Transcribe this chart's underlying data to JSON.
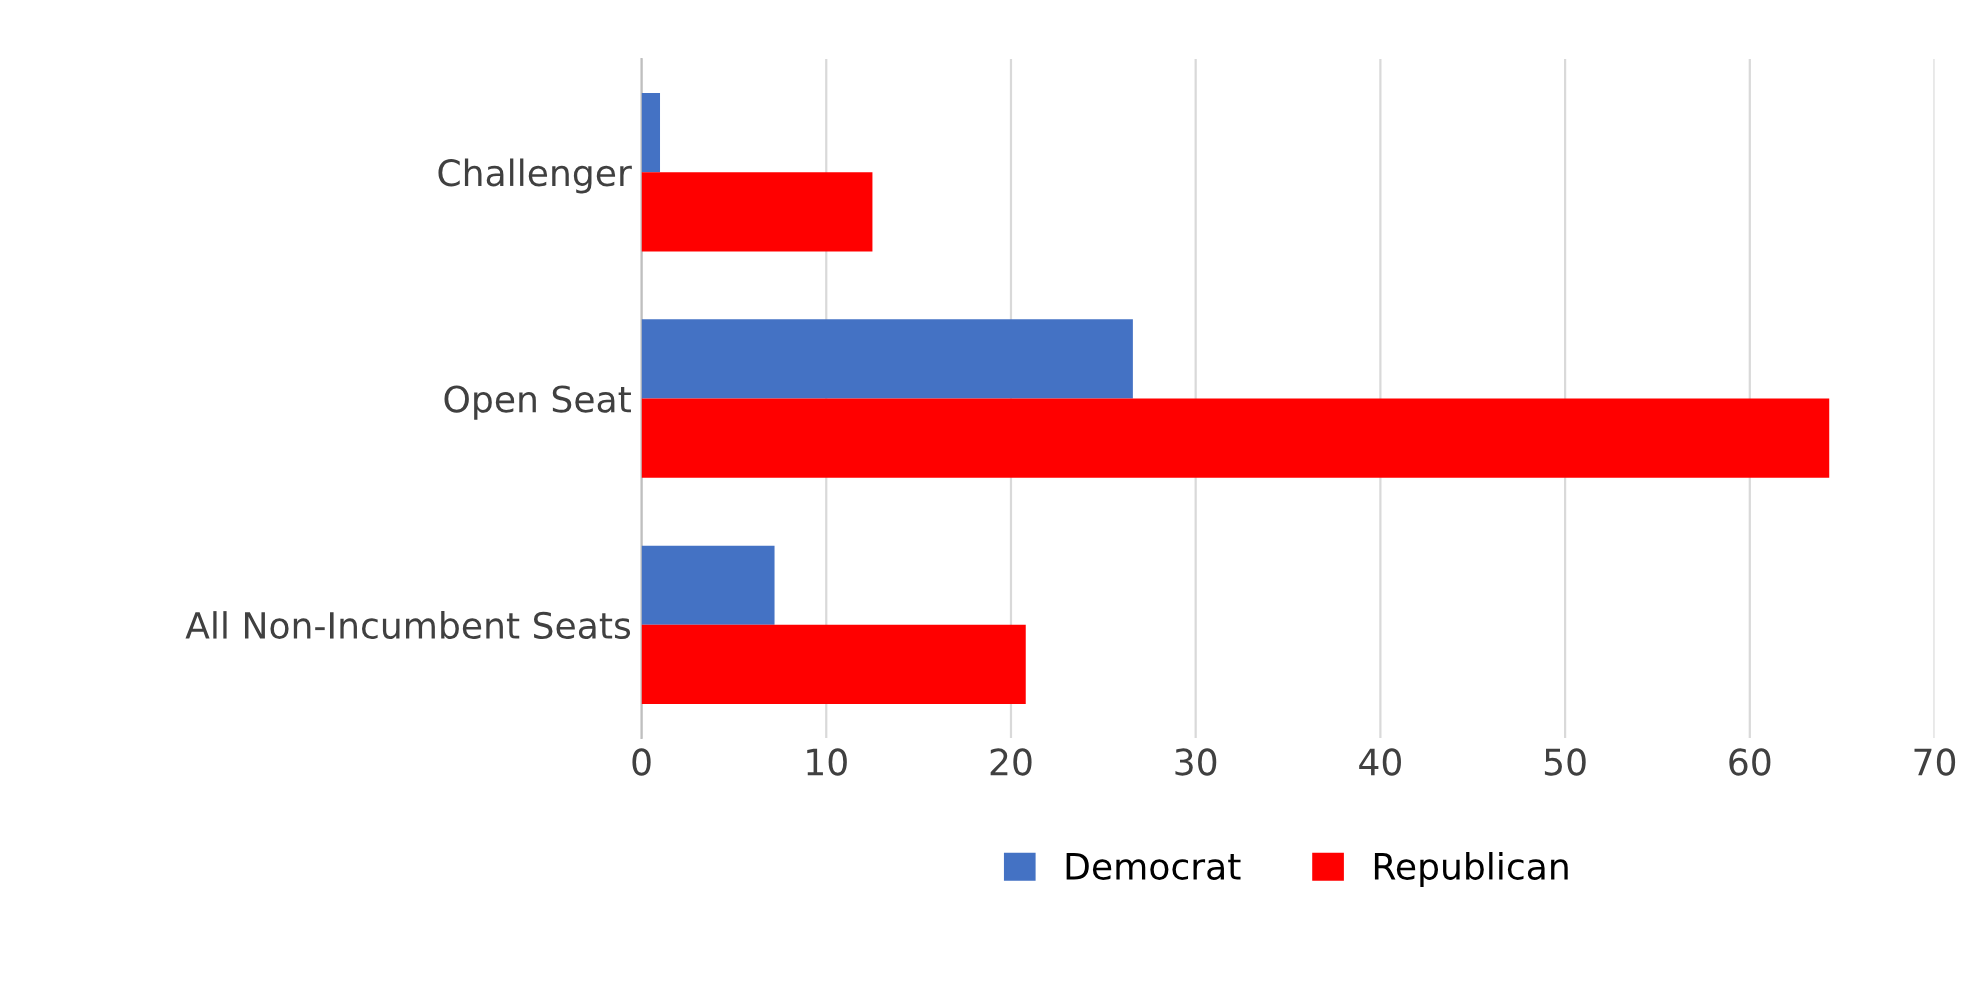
{
  "chart_data": {
    "type": "bar",
    "orientation": "horizontal",
    "categories": [
      "Challenger",
      "Open Seat",
      "All Non-Incumbent Seats"
    ],
    "series": [
      {
        "name": "Democrat",
        "color": "#4472c4",
        "values": [
          1.0,
          26.6,
          7.2
        ]
      },
      {
        "name": "Republican",
        "color": "#ff0000",
        "values": [
          12.5,
          64.3,
          20.8
        ]
      }
    ],
    "xlim": [
      0,
      70
    ],
    "xticks": [
      0,
      10,
      20,
      30,
      40,
      50,
      60,
      70
    ],
    "grid": "x",
    "legend": "bottom"
  }
}
